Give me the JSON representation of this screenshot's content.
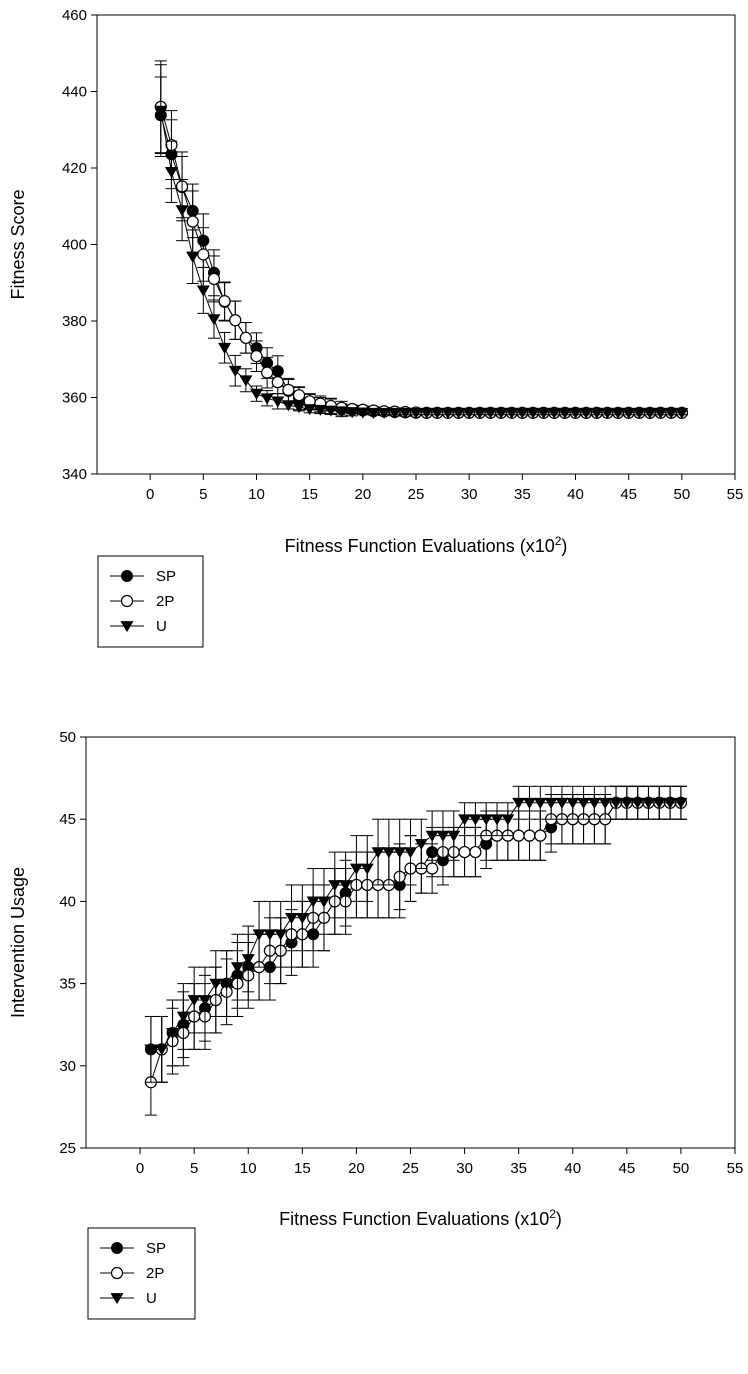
{
  "chart_data": [
    {
      "type": "line",
      "title": "",
      "xlabel": "Fitness Function Evaluations (x10",
      "xlabel_sup": "2",
      "xlabel_suffix": ")",
      "ylabel": "Fitness Score",
      "xlim": [
        -5,
        55
      ],
      "ylim": [
        340,
        460
      ],
      "xticks": [
        0,
        5,
        10,
        15,
        20,
        25,
        30,
        35,
        40,
        45,
        50,
        55
      ],
      "yticks": [
        340,
        360,
        380,
        400,
        420,
        440,
        460
      ],
      "grid": false,
      "legend_position": "bottom-left, outside plot",
      "x": [
        1,
        2,
        3,
        4,
        5,
        6,
        7,
        8,
        9,
        10,
        11,
        12,
        13,
        14,
        15,
        16,
        17,
        18,
        19,
        20,
        21,
        22,
        23,
        24,
        25,
        26,
        27,
        28,
        29,
        30,
        31,
        32,
        33,
        34,
        35,
        36,
        37,
        38,
        39,
        40,
        41,
        42,
        43,
        44,
        45,
        46,
        47,
        48,
        49,
        50
      ],
      "series": [
        {
          "name": "SP",
          "marker": "filled-circle",
          "values": [
            433.8,
            423.6,
            415.0,
            408.8,
            401.0,
            392.6,
            385.0,
            380.2,
            375.6,
            372.9,
            369.0,
            366.9,
            361.7,
            359.8,
            358.8,
            358.0,
            357.6,
            357.0,
            356.8,
            356.6,
            356.4,
            356.3,
            356.2,
            356.1,
            356.0,
            356.0,
            356.0,
            356.0,
            356.0,
            356.0,
            356.0,
            356.0,
            356.0,
            356.0,
            356.0,
            356.0,
            356.0,
            356.0,
            356.0,
            356.0,
            356.0,
            356.0,
            356.0,
            356.0,
            356.0,
            356.0,
            356.0,
            356.0,
            356.0,
            356.0
          ],
          "errors": [
            10,
            9,
            8,
            7,
            7,
            6,
            5,
            5,
            4,
            4,
            4,
            4,
            3,
            3,
            2,
            2,
            2,
            2,
            1,
            1,
            1,
            1,
            1,
            1,
            0.5,
            0.5,
            0.5,
            0.5,
            0.5,
            0.5,
            0.5,
            0.5,
            0.5,
            0.5,
            0.5,
            0.5,
            0.5,
            0.5,
            0.5,
            0.5,
            0.5,
            0.5,
            0.5,
            0.5,
            0.5,
            0.5,
            0.5,
            0.5,
            0.5,
            0.5
          ]
        },
        {
          "name": "2P",
          "marker": "open-circle",
          "values": [
            436.0,
            426.0,
            415.2,
            406.0,
            397.4,
            391.0,
            385.2,
            380.2,
            375.6,
            370.8,
            366.5,
            364.0,
            362.0,
            360.6,
            359.0,
            358.4,
            357.8,
            357.3,
            357.0,
            356.8,
            356.6,
            356.4,
            356.3,
            356.2,
            356.1,
            356.0,
            356.0,
            356.0,
            356.0,
            356.0,
            356.0,
            356.0,
            356.0,
            356.0,
            356.0,
            356.0,
            356.0,
            356.0,
            356.0,
            356.0,
            356.0,
            356.0,
            356.0,
            356.0,
            356.0,
            356.0,
            356.0,
            356.0,
            356.0,
            356.0
          ],
          "errors": [
            12,
            9,
            9,
            8,
            7,
            6,
            5,
            5,
            4,
            4,
            4,
            3,
            3,
            2,
            2,
            2,
            2,
            1,
            1,
            1,
            1,
            1,
            1,
            1,
            0.5,
            0.5,
            0.5,
            0.5,
            0.5,
            0.5,
            0.5,
            0.5,
            0.5,
            0.5,
            0.5,
            0.5,
            0.5,
            0.5,
            0.5,
            0.5,
            0.5,
            0.5,
            0.5,
            0.5,
            0.5,
            0.5,
            0.5,
            0.5,
            0.5,
            0.5
          ]
        },
        {
          "name": "U",
          "marker": "filled-triangle-down",
          "values": [
            435.0,
            419.0,
            409.0,
            396.8,
            388.0,
            380.5,
            373.0,
            367.0,
            364.5,
            361.0,
            359.8,
            359.0,
            358.0,
            357.5,
            357.0,
            356.8,
            356.6,
            356.4,
            356.2,
            356.1,
            356.0,
            356.0,
            356.0,
            356.0,
            356.0,
            356.0,
            356.0,
            356.0,
            356.0,
            356.0,
            356.0,
            356.0,
            356.0,
            356.0,
            356.0,
            356.0,
            356.0,
            356.0,
            356.0,
            356.0,
            356.0,
            356.0,
            356.0,
            356.0,
            356.0,
            356.0,
            356.0,
            356.0,
            356.0,
            356.0
          ],
          "errors": [
            12,
            8,
            8,
            7,
            6,
            5,
            4,
            4,
            3,
            2,
            2,
            2,
            1,
            1,
            1,
            1,
            1,
            1,
            1,
            0.5,
            0.5,
            0.5,
            0.5,
            0.5,
            0.5,
            0.5,
            0.5,
            0.5,
            0.5,
            0.5,
            0.5,
            0.5,
            0.5,
            0.5,
            0.5,
            0.5,
            0.5,
            0.5,
            0.5,
            0.5,
            0.5,
            0.5,
            0.5,
            0.5,
            0.5,
            0.5,
            0.5,
            0.5,
            0.5,
            0.5
          ]
        }
      ]
    },
    {
      "type": "line",
      "title": "",
      "xlabel": "Fitness Function Evaluations (x10",
      "xlabel_sup": "2",
      "xlabel_suffix": ")",
      "ylabel": "Intervention Usage",
      "xlim": [
        -5,
        55
      ],
      "ylim": [
        25,
        50
      ],
      "xticks": [
        0,
        5,
        10,
        15,
        20,
        25,
        30,
        35,
        40,
        45,
        50,
        55
      ],
      "yticks": [
        25,
        30,
        35,
        40,
        45,
        50
      ],
      "grid": false,
      "legend_position": "bottom-left, outside plot",
      "x": [
        1,
        2,
        3,
        4,
        5,
        6,
        7,
        8,
        9,
        10,
        11,
        12,
        13,
        14,
        15,
        16,
        17,
        18,
        19,
        20,
        21,
        22,
        23,
        24,
        25,
        26,
        27,
        28,
        29,
        30,
        31,
        32,
        33,
        34,
        35,
        36,
        37,
        38,
        39,
        40,
        41,
        42,
        43,
        44,
        45,
        46,
        47,
        48,
        49,
        50
      ],
      "series": [
        {
          "name": "SP",
          "marker": "filled-circle",
          "values": [
            31,
            31,
            32,
            32.5,
            33,
            33.5,
            34,
            35,
            35.5,
            36,
            36,
            36,
            37,
            37.5,
            38,
            38,
            39,
            40,
            40.5,
            41,
            41,
            41,
            41,
            41,
            42,
            42,
            43,
            42.5,
            43,
            43,
            43,
            43.5,
            44,
            44,
            44,
            44,
            44,
            44.5,
            45,
            45,
            45,
            45,
            45,
            46,
            46,
            46,
            46,
            46,
            46,
            46
          ],
          "errors": [
            2,
            2,
            2,
            2,
            2,
            2,
            2,
            2,
            2,
            2,
            2,
            2,
            2,
            2,
            2,
            2,
            2,
            2,
            2,
            2,
            2,
            2,
            2,
            2,
            2,
            1.5,
            1.5,
            1.5,
            1.5,
            1.5,
            1.5,
            1.5,
            1.5,
            1.5,
            1.5,
            1.5,
            1.5,
            1.5,
            1.5,
            1.5,
            1.5,
            1.5,
            1.5,
            1,
            1,
            1,
            1,
            1,
            1,
            1
          ]
        },
        {
          "name": "2P",
          "marker": "open-circle",
          "values": [
            29,
            31,
            31.5,
            32,
            33,
            33,
            34,
            34.5,
            35,
            35.5,
            36,
            37,
            37,
            38,
            38,
            39,
            39,
            40,
            40,
            41,
            41,
            41,
            41,
            41.5,
            42,
            42,
            42,
            43,
            43,
            43,
            43,
            44,
            44,
            44,
            44,
            44,
            44,
            45,
            45,
            45,
            45,
            45,
            45,
            46,
            46,
            46,
            46,
            46,
            46,
            46
          ],
          "errors": [
            2,
            2,
            2,
            2,
            2,
            2,
            2,
            2,
            2,
            2,
            2,
            2,
            2,
            2,
            2,
            2,
            2,
            2,
            2,
            2,
            2,
            2,
            2,
            2,
            2,
            1.5,
            1.5,
            1.5,
            1.5,
            1.5,
            1.5,
            1.5,
            1.5,
            1.5,
            1.5,
            1.5,
            1.5,
            1.5,
            1.5,
            1.5,
            1.5,
            1.5,
            1.5,
            1,
            1,
            1,
            1,
            1,
            1,
            1
          ]
        },
        {
          "name": "U",
          "marker": "filled-triangle-down",
          "values": [
            31,
            31,
            32,
            33,
            34,
            34,
            35,
            35,
            36,
            36.5,
            38,
            38,
            38,
            39,
            39,
            40,
            40,
            41,
            41,
            42,
            42,
            43,
            43,
            43,
            43,
            43.5,
            44,
            44,
            44,
            45,
            45,
            45,
            45,
            45,
            46,
            46,
            46,
            46,
            46,
            46,
            46,
            46,
            46,
            46,
            46,
            46,
            46,
            46,
            46,
            46
          ],
          "errors": [
            2,
            2,
            2,
            2,
            2,
            2,
            2,
            2,
            2,
            2,
            2,
            2,
            2,
            2,
            2,
            2,
            2,
            2,
            2,
            2,
            2,
            2,
            2,
            2,
            2,
            1.5,
            1.5,
            1.5,
            1.5,
            1,
            1,
            1,
            1,
            1,
            1,
            1,
            1,
            1,
            1,
            1,
            1,
            1,
            1,
            1,
            1,
            1,
            1,
            1,
            1,
            1
          ]
        }
      ]
    }
  ]
}
